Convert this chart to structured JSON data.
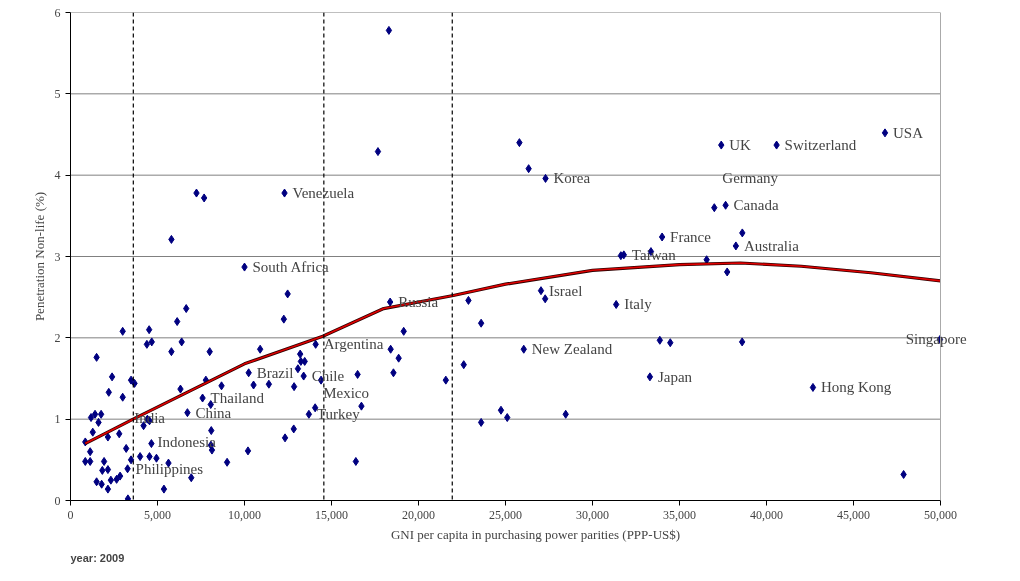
{
  "chart_data": {
    "type": "scatter",
    "xlabel": "GNI per capita in purchasing power parities (PPP-US$)",
    "ylabel": "Penetration Non-life (%)",
    "xlim": [
      0,
      50000
    ],
    "ylim": [
      0,
      6
    ],
    "xticks": [
      0,
      {
        "value": 5000,
        "label": "5,000"
      },
      {
        "value": 10000,
        "label": "10,000"
      },
      {
        "value": 15000,
        "label": "15,000"
      },
      {
        "value": 20000,
        "label": "20,000"
      },
      {
        "value": 25000,
        "label": "25,000"
      },
      {
        "value": 30000,
        "label": "30,000"
      },
      {
        "value": 35000,
        "label": "35,000"
      },
      {
        "value": 40000,
        "label": "40,000"
      },
      {
        "value": 45000,
        "label": "45,000"
      },
      {
        "value": 50000,
        "label": "50,000"
      }
    ],
    "yticks": [
      0,
      1,
      2,
      3,
      4,
      5,
      6
    ],
    "grid": "y",
    "series": [
      {
        "color": "#000080",
        "marker": "diamond",
        "x": [
          850,
          1130,
          850,
          1130,
          1280,
          1180,
          1410,
          1610,
          1760,
          1500,
          2390,
          2200,
          3000,
          3000,
          3480,
          3680,
          2150,
          2800,
          1930,
          1830,
          2150,
          1500,
          1790,
          2150,
          2320,
          2650,
          2850,
          3280,
          3200,
          3480,
          3300,
          4000,
          4200,
          4420,
          4540,
          4650,
          4540,
          4940,
          5370,
          5630,
          4390,
          4670,
          4520,
          5800,
          6130,
          6390,
          6650,
          6320,
          6720,
          6940,
          7590,
          7780,
          8000,
          8060,
          8090,
          8070,
          8130,
          8680,
          9000,
          10200,
          10000,
          10240,
          10520,
          10900,
          11400,
          12260,
          12480,
          12850,
          12330,
          12830,
          13070,
          13200,
          13240,
          13460,
          13400,
          14090,
          14400,
          14060,
          13700,
          7240,
          7680,
          12300,
          5800,
          18300,
          17670,
          25800,
          26330,
          27300,
          18370,
          22870,
          23600,
          19150,
          27040,
          27280,
          18400,
          18860,
          18560,
          16500,
          22600,
          21570,
          26050,
          16720,
          16400,
          23600,
          24740,
          25100,
          28460,
          37400,
          40580,
          46810,
          37000,
          37650,
          34000,
          38610,
          38240,
          31630,
          31800,
          33360,
          36560,
          37740,
          31360,
          33870,
          34470,
          38600,
          49970,
          33300,
          42670,
          47880
        ],
        "values": [
          0.72,
          0.6,
          0.48,
          0.48,
          0.84,
          1.02,
          1.06,
          0.96,
          1.06,
          1.76,
          1.52,
          1.33,
          1.27,
          2.08,
          1.48,
          1.44,
          0.78,
          0.82,
          0.48,
          0.37,
          0.38,
          0.23,
          0.2,
          0.14,
          0.25,
          0.26,
          0.3,
          0.39,
          0.64,
          0.5,
          0.02,
          0.54,
          0.92,
          1.0,
          0.98,
          0.7,
          0.54,
          0.52,
          0.14,
          0.46,
          1.92,
          1.95,
          2.1,
          1.83,
          2.2,
          1.95,
          2.36,
          1.37,
          1.08,
          0.28,
          1.26,
          1.48,
          1.83,
          1.18,
          0.86,
          0.68,
          0.62,
          1.41,
          0.47,
          0.61,
          2.87,
          1.57,
          1.42,
          1.86,
          1.43,
          2.23,
          2.54,
          1.4,
          0.77,
          0.88,
          1.62,
          1.8,
          1.71,
          1.71,
          1.53,
          1.92,
          1.48,
          1.14,
          1.06,
          3.78,
          3.72,
          3.78,
          3.21,
          5.78,
          4.29,
          4.4,
          4.08,
          3.96,
          2.44,
          2.46,
          2.18,
          2.08,
          2.58,
          2.48,
          1.86,
          1.75,
          1.57,
          1.55,
          1.67,
          1.48,
          1.86,
          1.16,
          0.48,
          0.96,
          1.11,
          1.02,
          1.06,
          4.37,
          4.37,
          4.52,
          3.6,
          3.63,
          3.24,
          3.29,
          3.13,
          3.01,
          3.02,
          3.06,
          2.96,
          2.81,
          2.41,
          1.97,
          1.94,
          1.95,
          1.98,
          1.52,
          1.39,
          0.32
        ]
      },
      {
        "type": "line",
        "color": "#e00000",
        "marker": "none",
        "x": [
          850,
          3600,
          10000,
          14500,
          18000,
          22000,
          25000,
          30000,
          35000,
          38500,
          42000,
          46000,
          50000
        ],
        "values": [
          0.7,
          1.0,
          1.68,
          2.02,
          2.36,
          2.52,
          2.66,
          2.83,
          2.9,
          2.92,
          2.88,
          2.8,
          2.7
        ]
      }
    ],
    "ref_lines": [
      {
        "axis": "x",
        "value": 3610,
        "color": "#000000",
        "line_style": "dashed"
      },
      {
        "axis": "x",
        "value": 14560,
        "color": "#000000",
        "line_style": "dashed"
      },
      {
        "axis": "x",
        "value": 21940,
        "color": "#000000",
        "line_style": "dashed"
      }
    ],
    "annotations": [
      {
        "text": "Venezuela",
        "x": 12300,
        "y": 3.78
      },
      {
        "text": "South Africa",
        "x": 10000,
        "y": 2.87
      },
      {
        "text": "Korea",
        "x": 27300,
        "y": 3.96
      },
      {
        "text": "UK",
        "x": 37400,
        "y": 4.37
      },
      {
        "text": "Switzerland",
        "x": 40580,
        "y": 4.37
      },
      {
        "text": "USA",
        "x": 46810,
        "y": 4.52
      },
      {
        "text": "Canada",
        "x": 37650,
        "y": 3.63
      },
      {
        "text": "Germany",
        "x": 37000,
        "y": 3.6
      },
      {
        "text": "France",
        "x": 34000,
        "y": 3.24
      },
      {
        "text": "Australia",
        "x": 38240,
        "y": 3.13
      },
      {
        "text": "Taiwan",
        "x": 31800,
        "y": 3.02
      },
      {
        "text": "Israel",
        "x": 27040,
        "y": 2.58
      },
      {
        "text": "Italy",
        "x": 31360,
        "y": 2.41
      },
      {
        "text": "Russia",
        "x": 18370,
        "y": 2.44
      },
      {
        "text": "Argentina",
        "x": 14090,
        "y": 1.92
      },
      {
        "text": "New Zealand",
        "x": 26050,
        "y": 1.86
      },
      {
        "text": "Singapore",
        "x": 49970,
        "y": 1.98
      },
      {
        "text": "Brazil",
        "x": 10240,
        "y": 1.57
      },
      {
        "text": "Chile",
        "x": 13400,
        "y": 1.53
      },
      {
        "text": "Japan",
        "x": 33300,
        "y": 1.52
      },
      {
        "text": "Hong Kong",
        "x": 42670,
        "y": 1.39
      },
      {
        "text": "Thailand",
        "x": 7590,
        "y": 1.26
      },
      {
        "text": "Turkey",
        "x": 13700,
        "y": 1.06
      },
      {
        "text": "Mexico",
        "x": 14060,
        "y": 1.14
      },
      {
        "text": "China",
        "x": 6720,
        "y": 1.08
      },
      {
        "text": "Philippines",
        "x": 3280,
        "y": 0.39
      },
      {
        "text": "Indonesia",
        "x": 4540,
        "y": 0.54
      },
      {
        "text": "India",
        "x": 3200,
        "y": 0.64
      },
      "year: 2009"
    ]
  }
}
